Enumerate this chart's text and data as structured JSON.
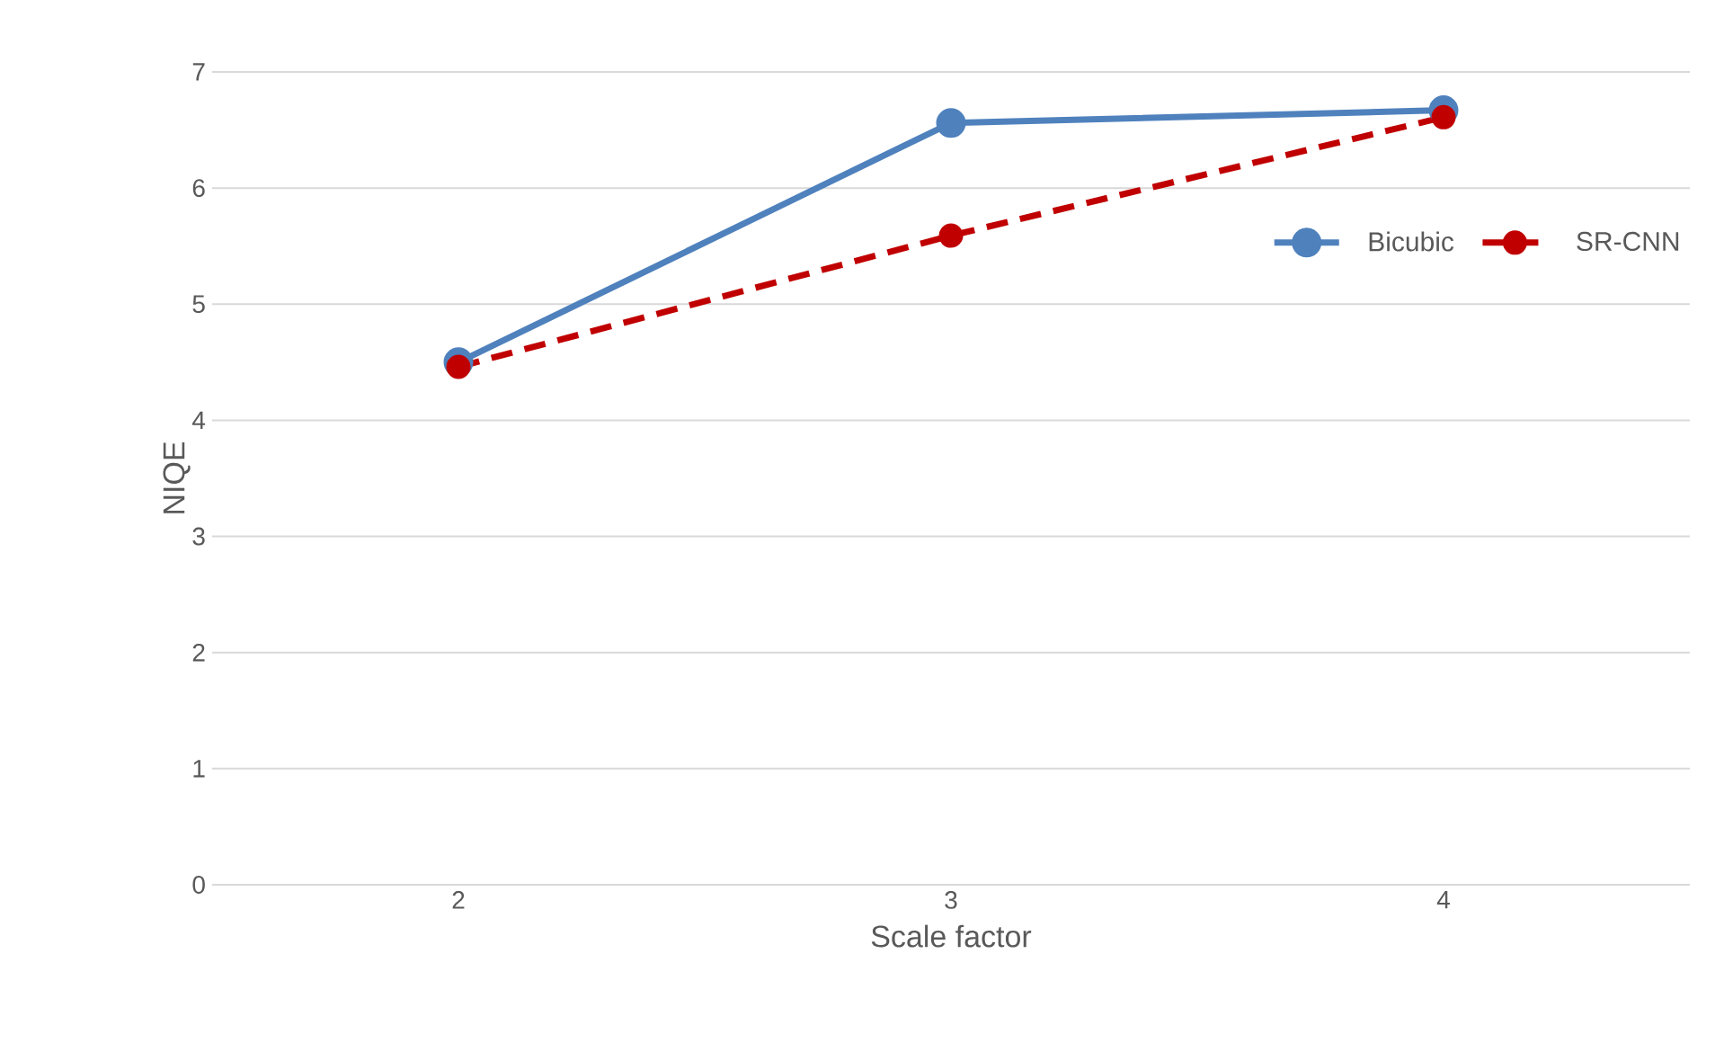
{
  "chart_data": {
    "type": "line",
    "xlabel": "Scale factor",
    "ylabel": "NIQE",
    "categories": [
      "2",
      "3",
      "4"
    ],
    "series": [
      {
        "name": "Bicubic",
        "color": "#4f81bd",
        "values": [
          4.5,
          6.56,
          6.67
        ],
        "line_style": "solid"
      },
      {
        "name": "SR-CNN",
        "color": "#c00000",
        "values": [
          4.46,
          5.59,
          6.61
        ],
        "line_style": "dashed"
      }
    ],
    "ylim": [
      0,
      7
    ],
    "yticks": [
      0,
      1,
      2,
      3,
      4,
      5,
      6,
      7
    ],
    "grid": "y",
    "legend": "right",
    "marker": "circle"
  }
}
